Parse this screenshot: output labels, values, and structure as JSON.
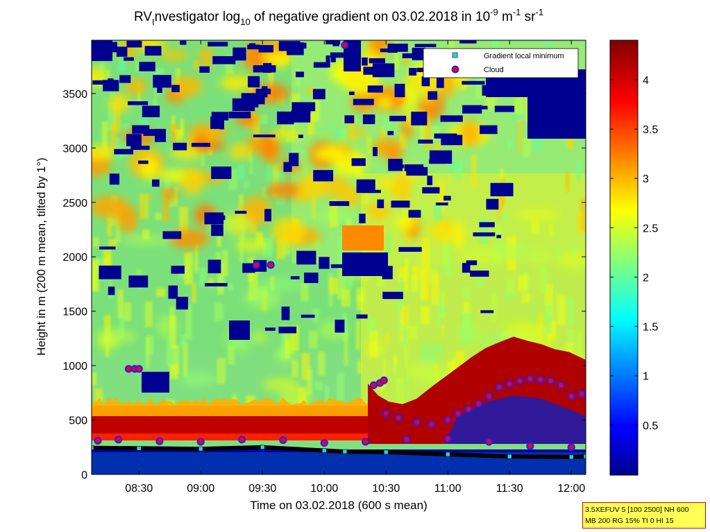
{
  "chart_data": {
    "type": "heatmap",
    "title": {
      "prefix": "RV",
      "sub1": "I",
      "mid": "nvestigator log",
      "sub2": "10",
      "rest": " of negative gradient on 03.02.2018 in 10",
      "sup1": "-9",
      "unit1": " m",
      "sup2": "-1",
      "unit2": " sr",
      "sup3": "-1"
    },
    "xlabel": "Time on 03.02.2018 (600 s mean)",
    "ylabel": "Height in m (200 m mean, tilted by 1°)",
    "x_ticks": [
      "08:30",
      "09:00",
      "09:30",
      "10:00",
      "10:30",
      "11:00",
      "11:30",
      "12:00"
    ],
    "y_ticks": [
      "0",
      "500",
      "1000",
      "1500",
      "2000",
      "2500",
      "3000",
      "3500"
    ],
    "xlim": [
      "08:07",
      "12:07"
    ],
    "ylim": [
      0,
      3990
    ],
    "colorbar": {
      "ticks": [
        "0.5",
        "1",
        "1.5",
        "2",
        "2.5",
        "3",
        "3.5",
        "4"
      ],
      "range": [
        0,
        4.4
      ],
      "colormap": "jet"
    },
    "legend": {
      "position": "top-right",
      "entries": [
        {
          "label": "Gradient local minimum",
          "marker": "cyan-square",
          "color": "#22d8e0"
        },
        {
          "label": "Cloud",
          "marker": "red-dot-blue-ring",
          "color": "#ff0000"
        }
      ]
    },
    "series": [
      {
        "name": "Gradient local minimum",
        "points": [
          [
            "08:07",
            245
          ],
          [
            "08:30",
            240
          ],
          [
            "09:00",
            235
          ],
          [
            "09:30",
            250
          ],
          [
            "10:00",
            220
          ],
          [
            "10:10",
            210
          ],
          [
            "10:30",
            205
          ],
          [
            "11:00",
            185
          ],
          [
            "11:30",
            165
          ],
          [
            "12:00",
            160
          ],
          [
            "12:07",
            165
          ]
        ]
      },
      {
        "name": "Cloud",
        "points": [
          [
            "08:25",
            970
          ],
          [
            "08:28",
            970
          ],
          [
            "08:30",
            970
          ],
          [
            "09:27",
            1925
          ],
          [
            "09:34",
            1925
          ],
          [
            "10:10",
            3945
          ],
          [
            "10:24",
            820
          ],
          [
            "10:27",
            840
          ],
          [
            "10:29",
            865
          ],
          [
            "10:30",
            560
          ],
          [
            "10:36",
            520
          ],
          [
            "10:45",
            480
          ],
          [
            "10:52",
            460
          ],
          [
            "11:00",
            500
          ],
          [
            "11:05",
            560
          ],
          [
            "11:10",
            600
          ],
          [
            "11:15",
            650
          ],
          [
            "11:20",
            720
          ],
          [
            "11:25",
            800
          ],
          [
            "11:30",
            830
          ],
          [
            "11:35",
            860
          ],
          [
            "11:40",
            880
          ],
          [
            "11:45",
            870
          ],
          [
            "11:50",
            860
          ],
          [
            "11:55",
            820
          ],
          [
            "12:00",
            720
          ],
          [
            "12:05",
            740
          ],
          [
            "08:10",
            310
          ],
          [
            "08:20",
            320
          ],
          [
            "08:40",
            305
          ],
          [
            "09:00",
            300
          ],
          [
            "09:20",
            320
          ],
          [
            "09:40",
            315
          ],
          [
            "10:00",
            290
          ],
          [
            "10:20",
            300
          ],
          [
            "10:40",
            320
          ],
          [
            "11:00",
            330
          ],
          [
            "11:20",
            300
          ],
          [
            "11:40",
            260
          ],
          [
            "12:00",
            250
          ]
        ]
      }
    ]
  },
  "info_box": {
    "line1": "3.5XEFUV 5 [100 2500] NH 600",
    "line2": "MB 200 RG 15% TI 0 HI 15"
  }
}
